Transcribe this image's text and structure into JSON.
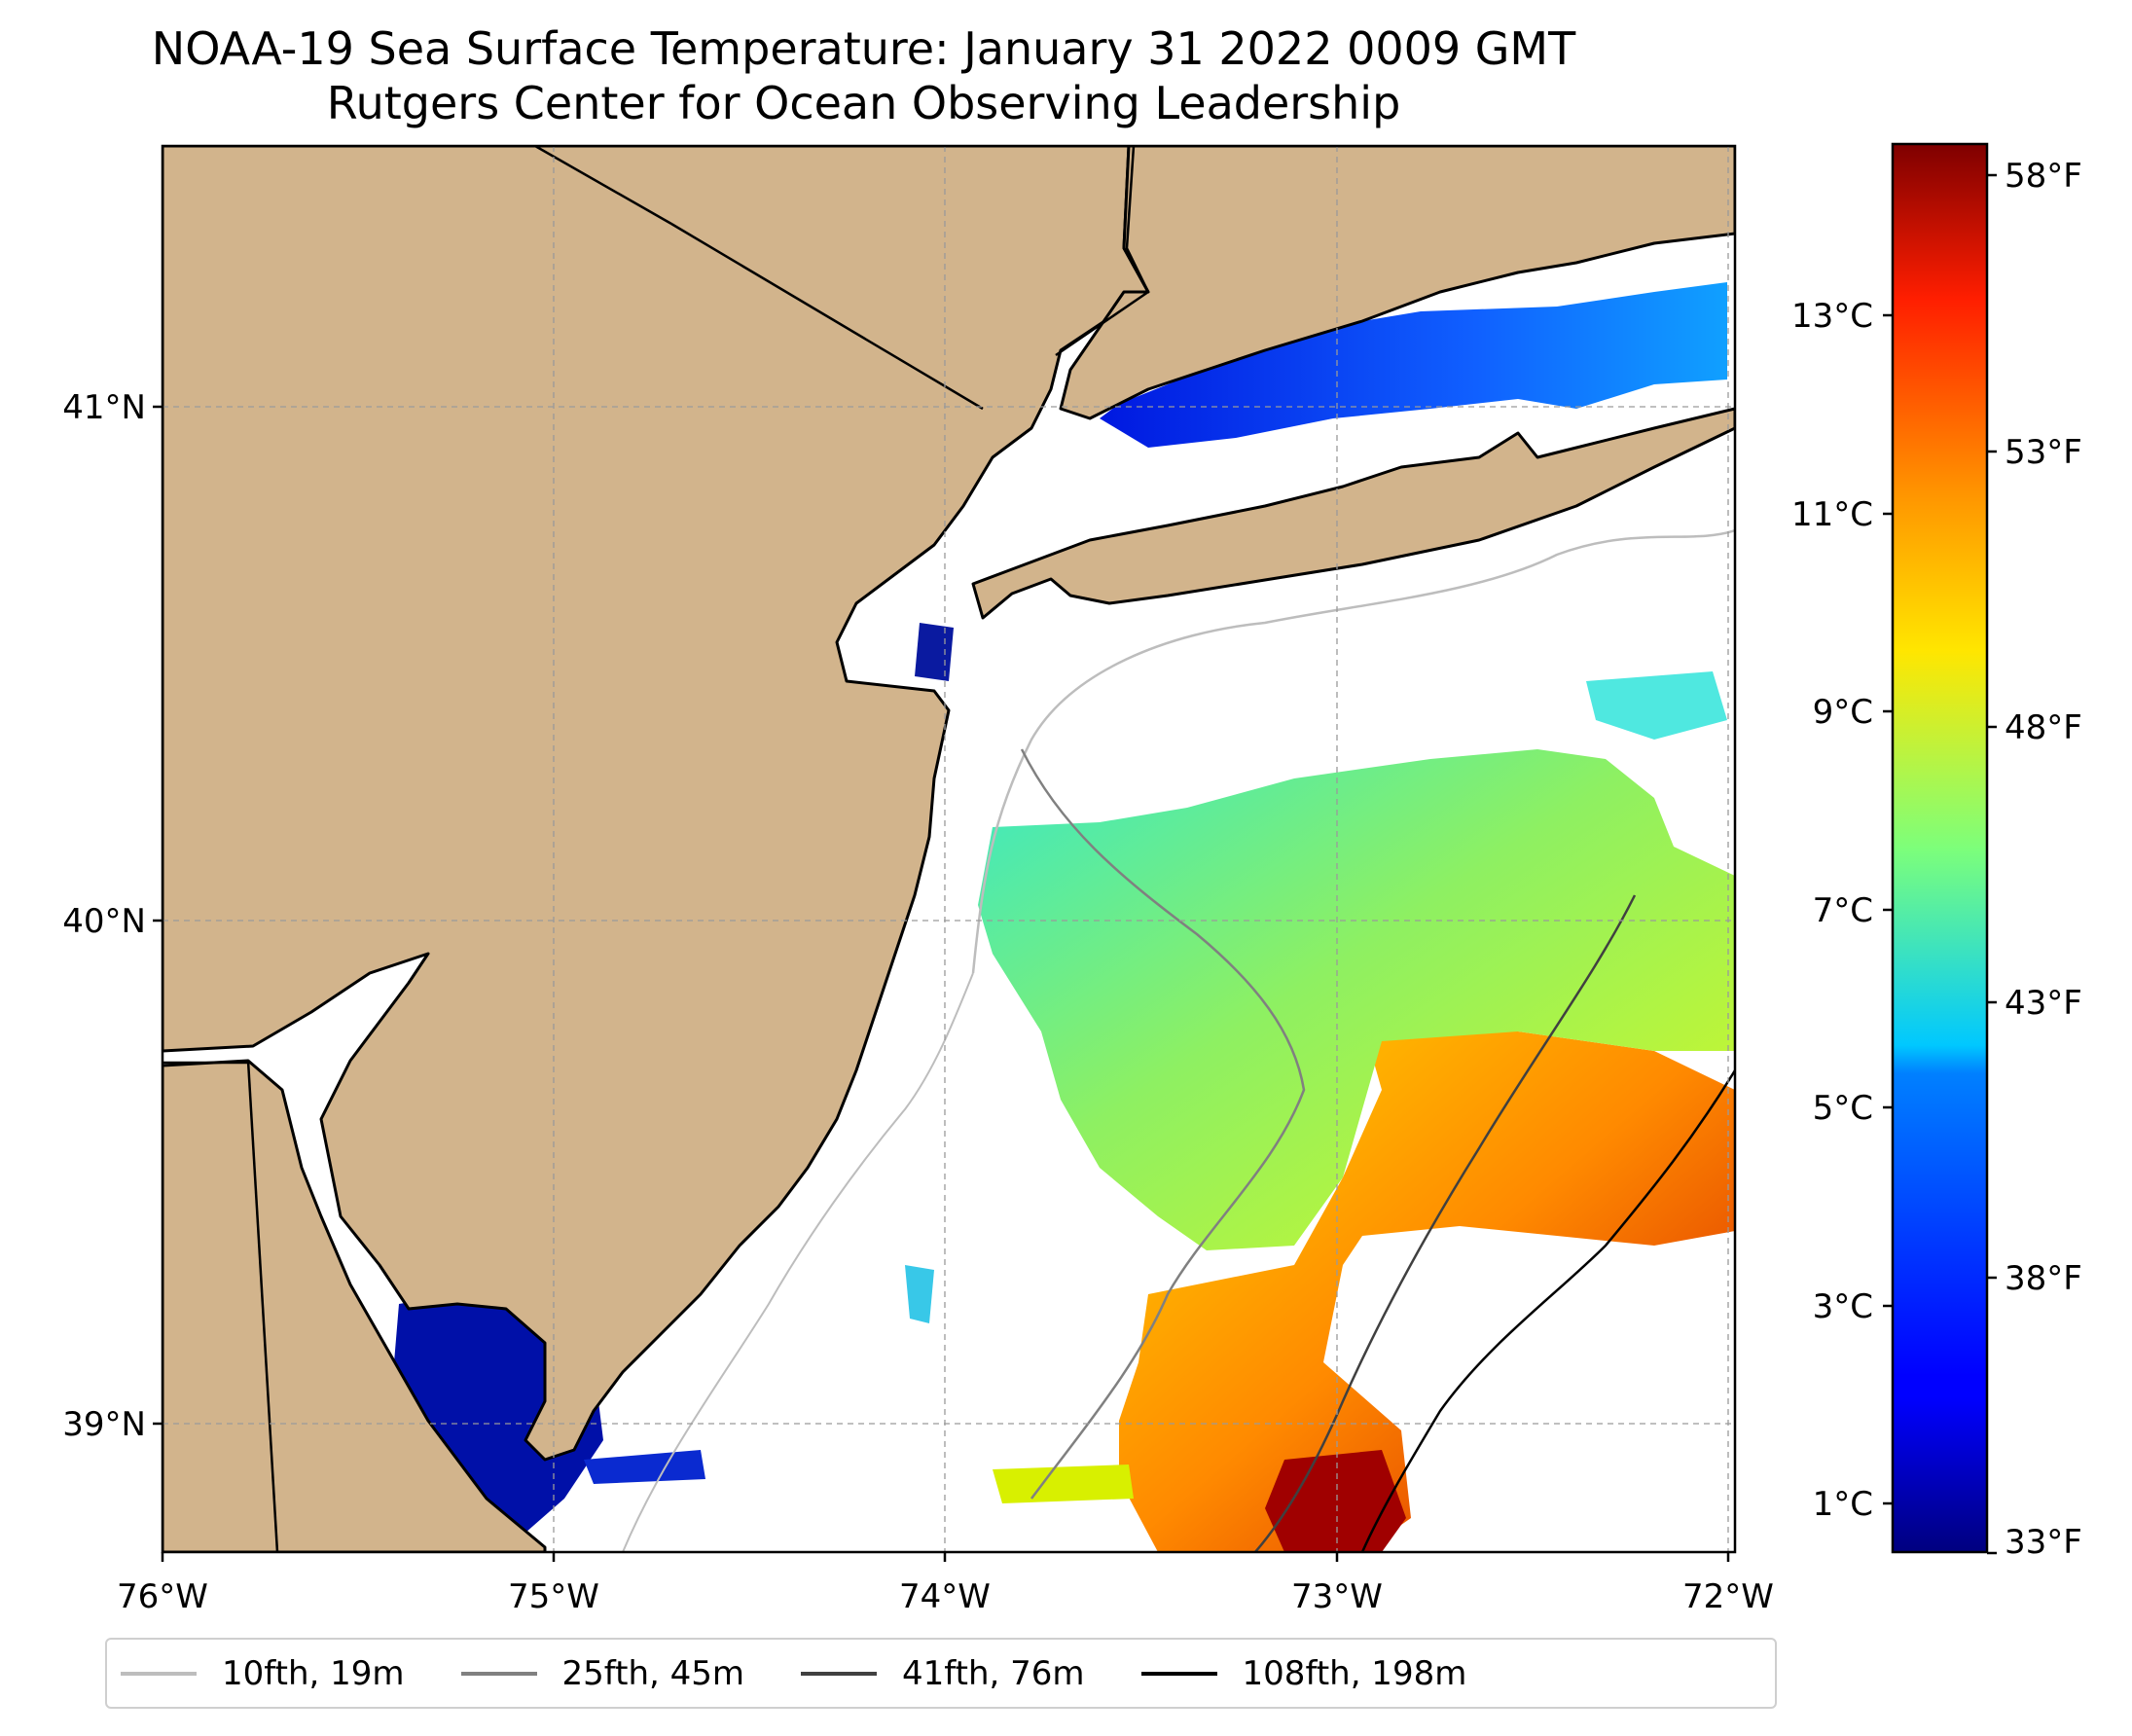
{
  "title": {
    "line1": "NOAA-19 Sea Surface Temperature: January 31 2022 0009 GMT",
    "line2": "Rutgers Center for Ocean Observing Leadership"
  },
  "map": {
    "lon_ticks": [
      "76°W",
      "75°W",
      "74°W",
      "73°W",
      "72°W"
    ],
    "lat_ticks": [
      "41°N",
      "40°N",
      "39°N"
    ],
    "extent": {
      "lon": [
        -76,
        -72
      ],
      "lat": [
        38.75,
        41.52
      ]
    },
    "land_color": "#d2b48c",
    "coastline_color": "#000000",
    "gridlines": "dashed"
  },
  "colorbar": {
    "celsius_ticks": [
      "13°C",
      "11°C",
      "9°C",
      "7°C",
      "5°C",
      "3°C",
      "1°C"
    ],
    "fahrenheit_ticks": [
      "58°F",
      "53°F",
      "48°F",
      "43°F",
      "38°F",
      "33°F"
    ],
    "colormap": "jet",
    "min_f": 33,
    "max_f": 58.5
  },
  "legend": {
    "items": [
      {
        "label": "10fth, 19m",
        "color": "#bdbdbd"
      },
      {
        "label": "25fth, 45m",
        "color": "#808080"
      },
      {
        "label": "41fth, 76m",
        "color": "#404040"
      },
      {
        "label": "108fth, 198m",
        "color": "#000000"
      }
    ]
  }
}
